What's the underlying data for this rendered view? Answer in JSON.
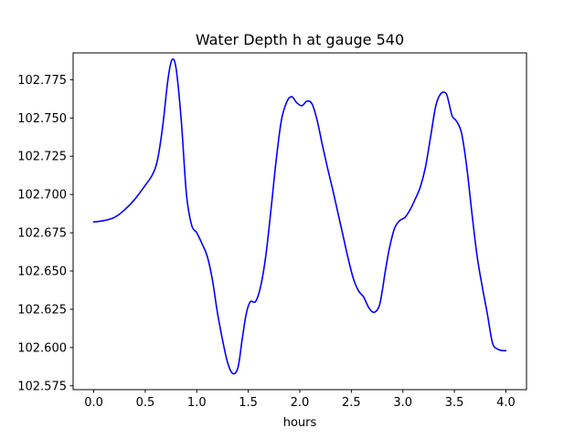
{
  "chart_data": {
    "type": "line",
    "title": "Water Depth h at gauge 540",
    "xlabel": "hours",
    "ylabel": "",
    "xlim": [
      -0.2,
      4.2
    ],
    "ylim": [
      102.5725,
      102.7925
    ],
    "xticks": [
      0.0,
      0.5,
      1.0,
      1.5,
      2.0,
      2.5,
      3.0,
      3.5,
      4.0
    ],
    "xtick_labels": [
      "0.0",
      "0.5",
      "1.0",
      "1.5",
      "2.0",
      "2.5",
      "3.0",
      "3.5",
      "4.0"
    ],
    "yticks": [
      102.575,
      102.6,
      102.625,
      102.65,
      102.675,
      102.7,
      102.725,
      102.75,
      102.775
    ],
    "ytick_labels": [
      "102.575",
      "102.600",
      "102.625",
      "102.650",
      "102.675",
      "102.700",
      "102.725",
      "102.750",
      "102.775"
    ],
    "grid": false,
    "legend": "none",
    "series": [
      {
        "color": "#0000ff",
        "x": [
          0.0,
          0.1,
          0.2,
          0.3,
          0.4,
          0.5,
          0.57,
          0.62,
          0.67,
          0.72,
          0.76,
          0.8,
          0.85,
          0.9,
          0.95,
          1.0,
          1.05,
          1.1,
          1.15,
          1.2,
          1.25,
          1.3,
          1.35,
          1.4,
          1.44,
          1.48,
          1.52,
          1.57,
          1.62,
          1.67,
          1.72,
          1.77,
          1.82,
          1.87,
          1.92,
          1.97,
          2.02,
          2.07,
          2.12,
          2.17,
          2.22,
          2.27,
          2.32,
          2.37,
          2.42,
          2.47,
          2.52,
          2.57,
          2.62,
          2.67,
          2.72,
          2.77,
          2.8,
          2.83,
          2.87,
          2.92,
          2.97,
          3.02,
          3.07,
          3.12,
          3.17,
          3.22,
          3.27,
          3.32,
          3.37,
          3.42,
          3.45,
          3.48,
          3.52,
          3.57,
          3.62,
          3.67,
          3.72,
          3.77,
          3.82,
          3.87,
          3.92,
          3.97,
          4.0
        ],
        "y": [
          102.682,
          102.683,
          102.685,
          102.69,
          102.697,
          102.706,
          102.713,
          102.723,
          102.745,
          102.775,
          102.788,
          102.782,
          102.748,
          102.7,
          102.68,
          102.675,
          102.668,
          102.66,
          102.645,
          102.623,
          102.605,
          102.59,
          102.583,
          102.587,
          102.605,
          102.622,
          102.63,
          102.63,
          102.64,
          102.66,
          102.69,
          102.722,
          102.748,
          102.76,
          102.764,
          102.76,
          102.758,
          102.761,
          102.759,
          102.748,
          102.732,
          102.717,
          102.703,
          102.688,
          102.673,
          102.658,
          102.645,
          102.637,
          102.633,
          102.626,
          102.623,
          102.627,
          102.637,
          102.65,
          102.665,
          102.678,
          102.683,
          102.685,
          102.69,
          102.697,
          102.705,
          102.718,
          102.738,
          102.758,
          102.766,
          102.766,
          102.759,
          102.751,
          102.748,
          102.74,
          102.718,
          102.688,
          102.66,
          102.64,
          102.622,
          102.603,
          102.599,
          102.598,
          102.598
        ]
      }
    ]
  }
}
